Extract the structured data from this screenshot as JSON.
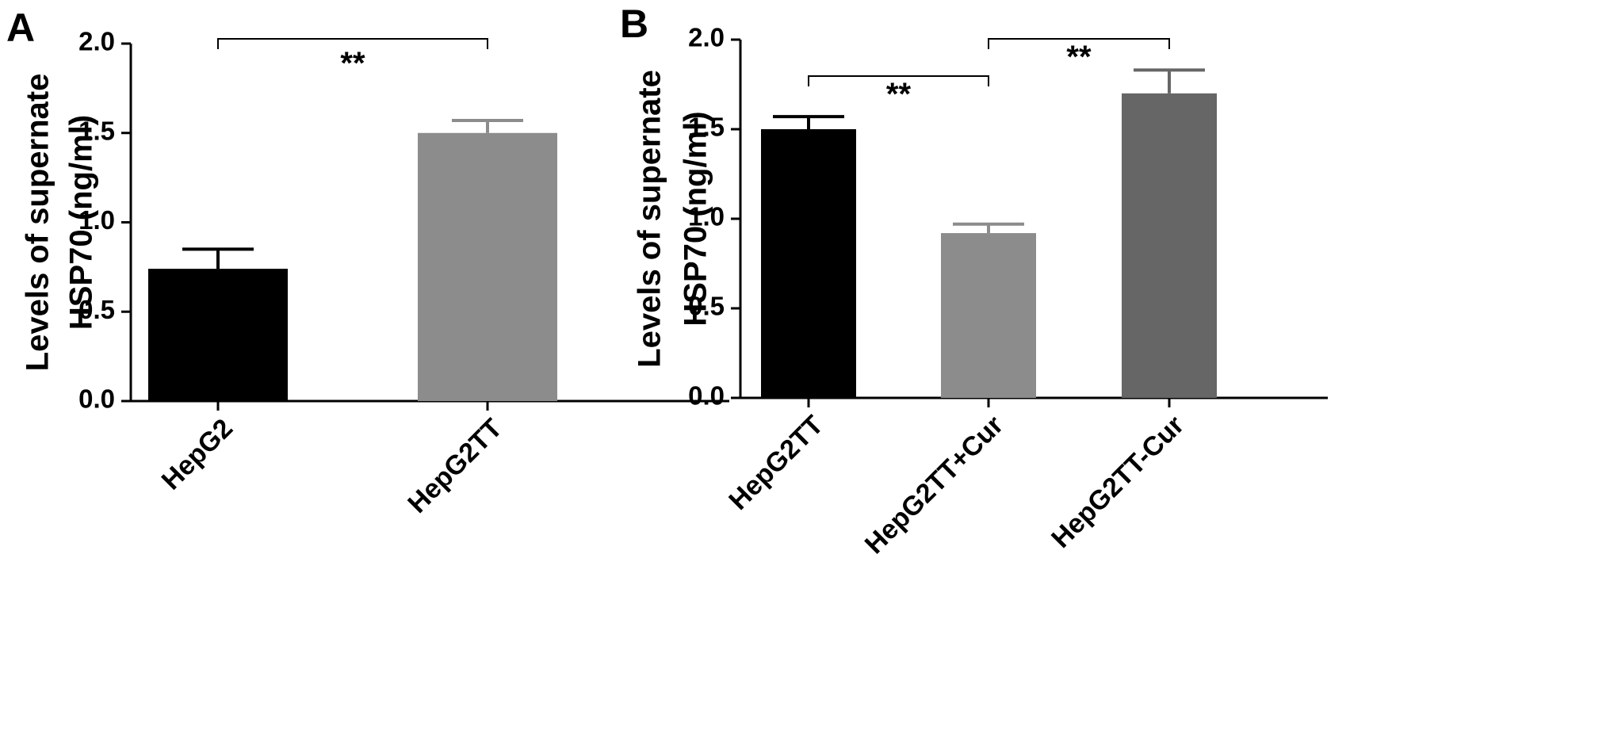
{
  "chart_data": [
    {
      "type": "bar",
      "panel": "A",
      "ylabel": [
        "Levels of  supernate",
        "HSP70 (ng/ml)"
      ],
      "ylim": [
        0,
        2.0
      ],
      "yticks": [
        "0.0",
        "0.5",
        "1.0",
        "1.5",
        "2.0"
      ],
      "categories": [
        "HepG2",
        "HepG2TT"
      ],
      "values": [
        0.74,
        1.5
      ],
      "errors": [
        0.11,
        0.07
      ],
      "colors": [
        "#000000",
        "#8c8c8c"
      ],
      "significance": [
        {
          "from": 0,
          "to": 1,
          "label": "**"
        }
      ]
    },
    {
      "type": "bar",
      "panel": "B",
      "ylabel": [
        "Levels of  supernate",
        "HSP70 (ng/ml)"
      ],
      "ylim": [
        0,
        2.0
      ],
      "yticks": [
        "0.0",
        "0.5",
        "1.0",
        "1.5",
        "2.0"
      ],
      "categories": [
        "HepG2TT",
        "HepG2TT+Cur",
        "HepG2TT-Cur"
      ],
      "values": [
        1.5,
        0.92,
        1.7
      ],
      "errors": [
        0.07,
        0.05,
        0.13
      ],
      "colors": [
        "#000000",
        "#8c8c8c",
        "#666666"
      ],
      "significance": [
        {
          "from": 0,
          "to": 1,
          "label": "**"
        },
        {
          "from": 1,
          "to": 2,
          "label": "**"
        }
      ]
    }
  ]
}
